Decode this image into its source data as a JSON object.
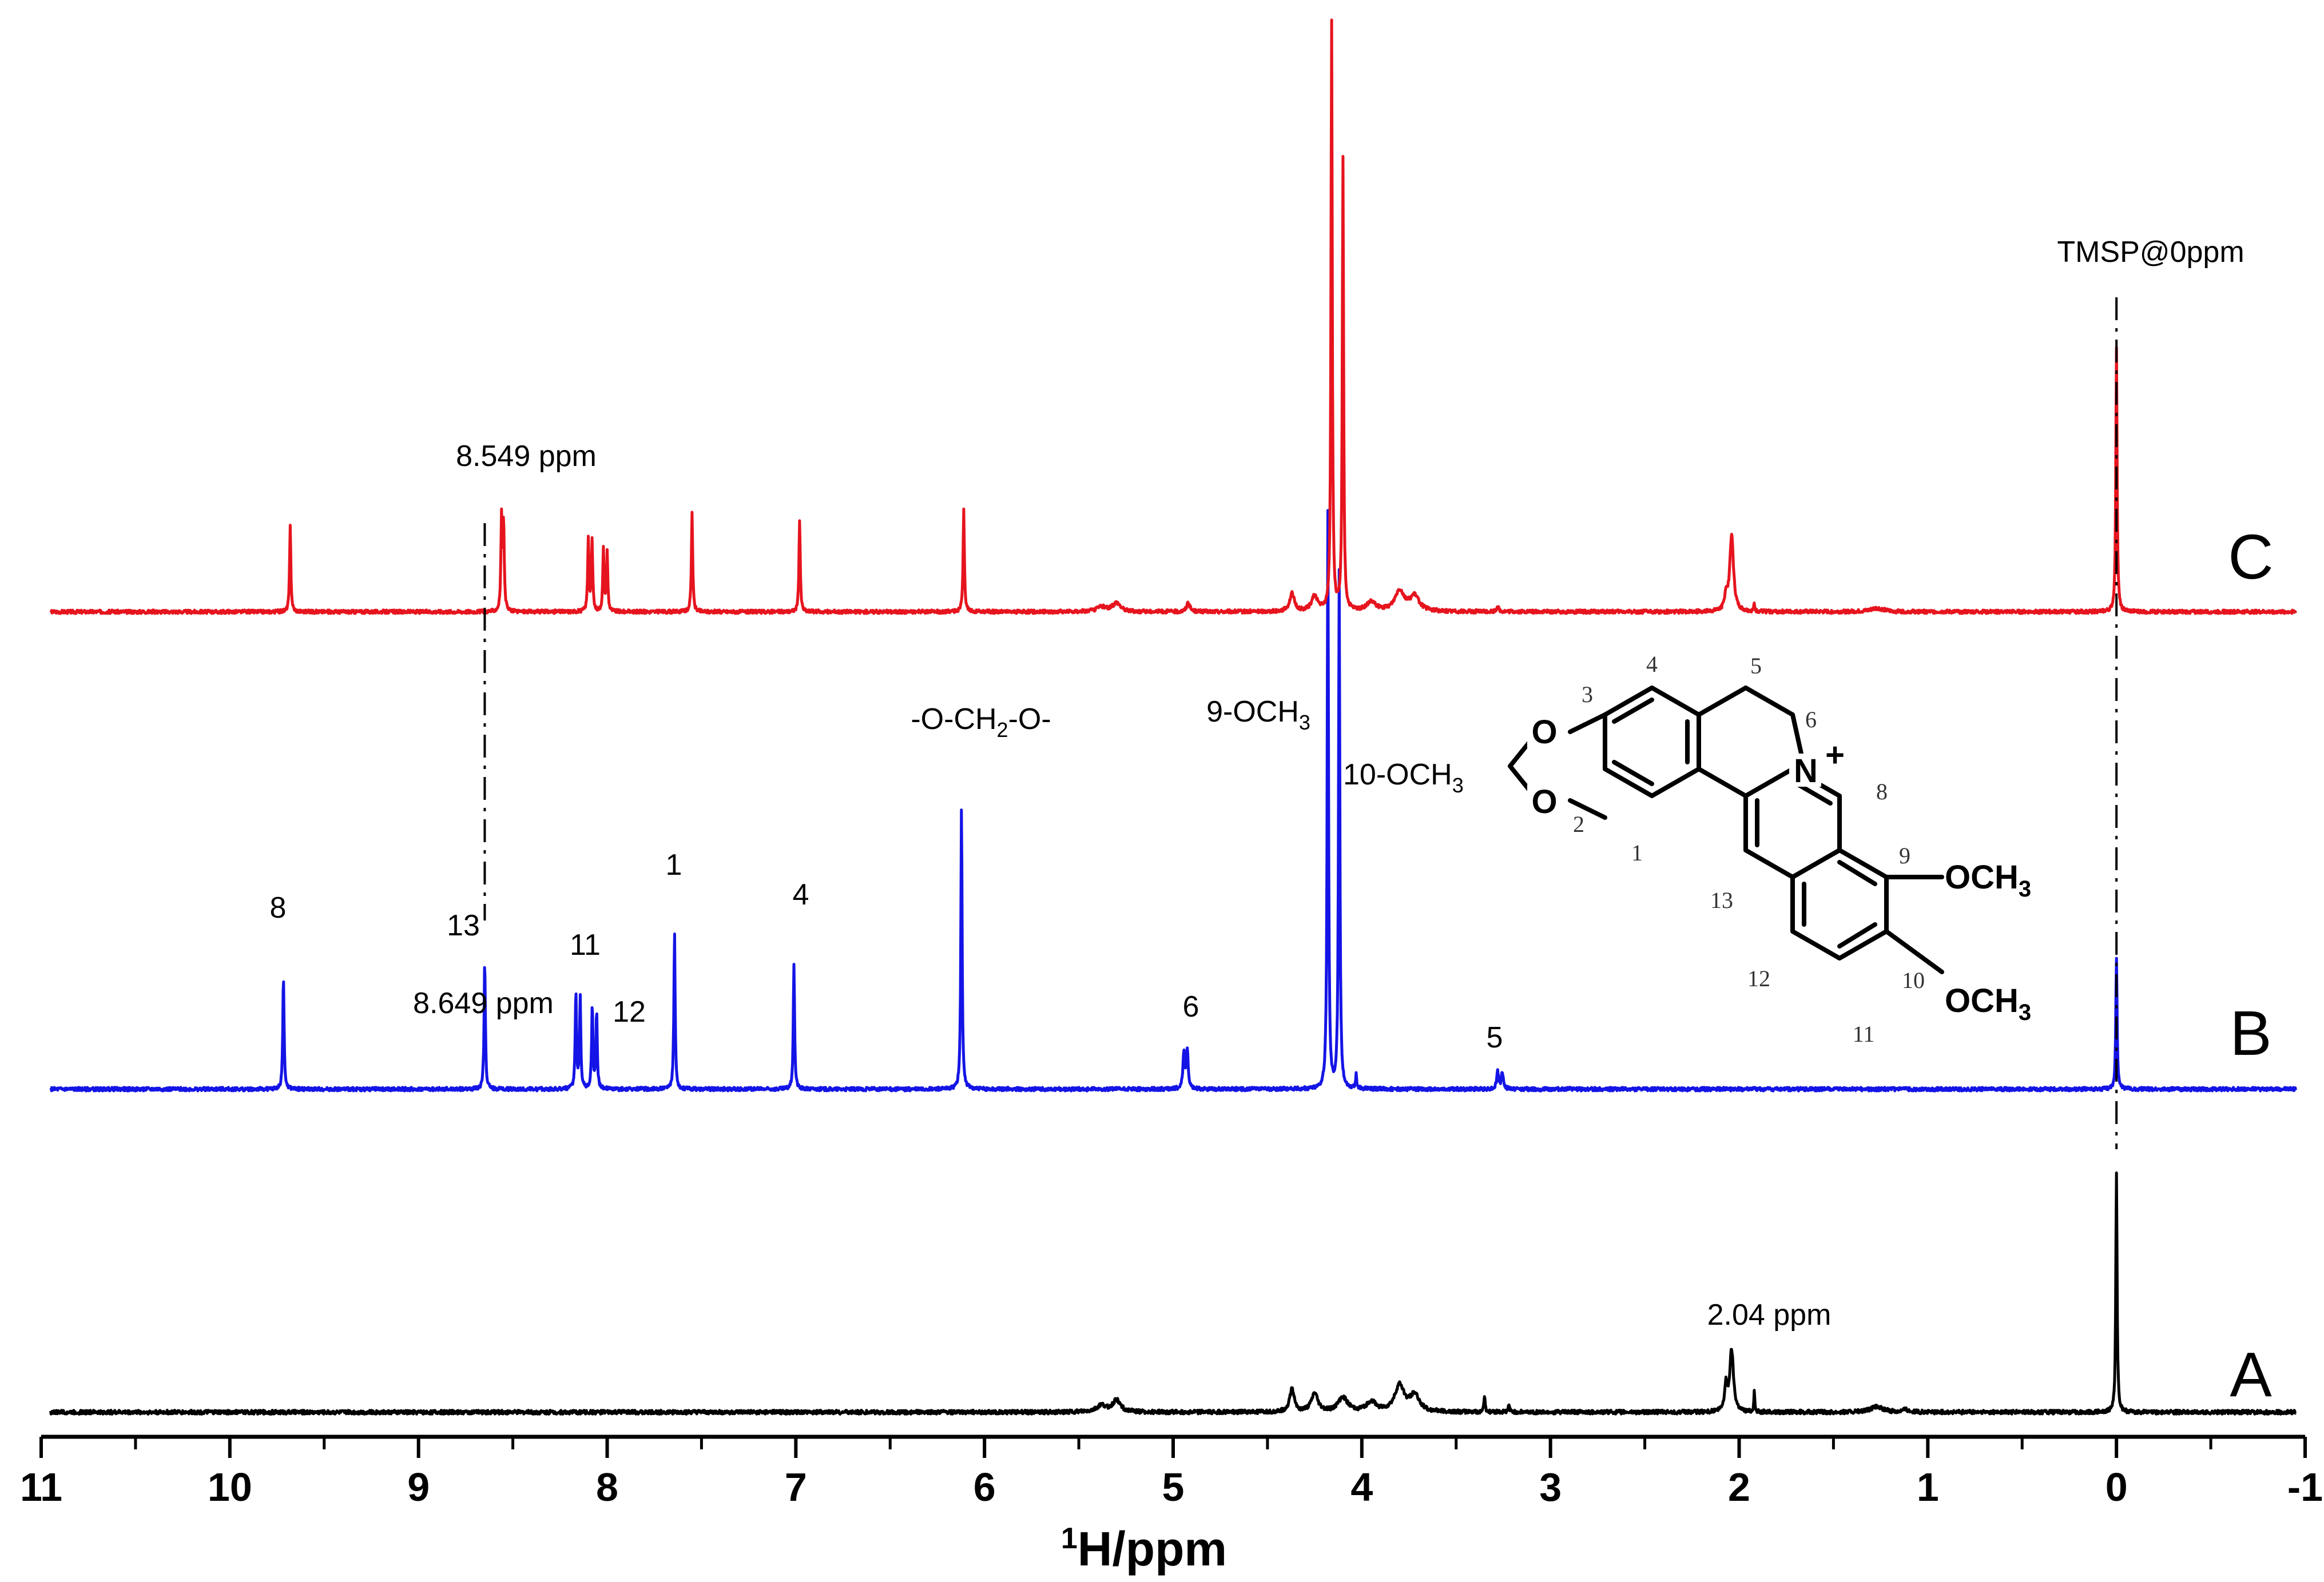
{
  "chart_data": {
    "type": "line",
    "title": "",
    "xlabel_sup": "1",
    "xlabel_main": "H/ppm",
    "ylabel": "",
    "xlim": [
      11,
      -1
    ],
    "x_reversed": true,
    "ticks": [
      "11",
      "10",
      "9",
      "8",
      "7",
      "6",
      "5",
      "4",
      "3",
      "2",
      "1",
      "0",
      "-1"
    ],
    "grid": false,
    "series": [
      {
        "name": "A",
        "color": "#000000",
        "peaks": [
          {
            "ppm": 5.38,
            "h": 0.01,
            "w": 0.03
          },
          {
            "ppm": 5.3,
            "h": 0.018,
            "w": 0.025
          },
          {
            "ppm": 4.37,
            "h": 0.035,
            "w": 0.015
          },
          {
            "ppm": 4.25,
            "h": 0.028,
            "w": 0.02
          },
          {
            "ppm": 4.1,
            "h": 0.022,
            "w": 0.03
          },
          {
            "ppm": 3.95,
            "h": 0.015,
            "w": 0.03
          },
          {
            "ppm": 3.8,
            "h": 0.04,
            "w": 0.03
          },
          {
            "ppm": 3.72,
            "h": 0.025,
            "w": 0.03
          },
          {
            "ppm": 3.35,
            "h": 0.025,
            "w": 0.004
          },
          {
            "ppm": 3.22,
            "h": 0.012,
            "w": 0.004
          },
          {
            "ppm": 2.07,
            "h": 0.04,
            "w": 0.008
          },
          {
            "ppm": 2.04,
            "h": 0.095,
            "w": 0.012
          },
          {
            "ppm": 1.92,
            "h": 0.032,
            "w": 0.003
          },
          {
            "ppm": 1.27,
            "h": 0.008,
            "w": 0.04
          },
          {
            "ppm": 1.12,
            "h": 0.004,
            "w": 0.02
          },
          {
            "ppm": 0.0,
            "h": 0.37,
            "w": 0.004
          }
        ]
      },
      {
        "name": "B",
        "color": "#1414e6",
        "peaks": [
          {
            "ppm": 9.716,
            "h": 0.19,
            "w": 0.004
          },
          {
            "ppm": 8.649,
            "h": 0.215,
            "w": 0.004
          },
          {
            "ppm": 8.166,
            "h": 0.16,
            "w": 0.004
          },
          {
            "ppm": 8.143,
            "h": 0.155,
            "w": 0.004
          },
          {
            "ppm": 8.079,
            "h": 0.14,
            "w": 0.004
          },
          {
            "ppm": 8.056,
            "h": 0.13,
            "w": 0.004
          },
          {
            "ppm": 7.643,
            "h": 0.26,
            "w": 0.004
          },
          {
            "ppm": 7.01,
            "h": 0.21,
            "w": 0.004
          },
          {
            "ppm": 6.122,
            "h": 0.47,
            "w": 0.004
          },
          {
            "ppm": 4.943,
            "h": 0.06,
            "w": 0.006
          },
          {
            "ppm": 4.925,
            "h": 0.06,
            "w": 0.006
          },
          {
            "ppm": 4.18,
            "h": 0.96,
            "w": 0.004
          },
          {
            "ppm": 4.12,
            "h": 0.86,
            "w": 0.004
          },
          {
            "ppm": 4.03,
            "h": 0.025,
            "w": 0.003
          },
          {
            "ppm": 3.28,
            "h": 0.03,
            "w": 0.006
          },
          {
            "ppm": 3.255,
            "h": 0.028,
            "w": 0.006
          },
          {
            "ppm": 0.0,
            "h": 0.22,
            "w": 0.004
          }
        ]
      },
      {
        "name": "C",
        "color": "#e6141e",
        "peaks": [
          {
            "ppm": 9.68,
            "h": 0.145,
            "w": 0.004
          },
          {
            "ppm": 8.56,
            "h": 0.155,
            "w": 0.004
          },
          {
            "ppm": 8.549,
            "h": 0.15,
            "w": 0.004
          },
          {
            "ppm": 8.1,
            "h": 0.125,
            "w": 0.004
          },
          {
            "ppm": 8.08,
            "h": 0.12,
            "w": 0.004
          },
          {
            "ppm": 8.02,
            "h": 0.105,
            "w": 0.004
          },
          {
            "ppm": 8.0,
            "h": 0.1,
            "w": 0.004
          },
          {
            "ppm": 7.55,
            "h": 0.17,
            "w": 0.004
          },
          {
            "ppm": 6.98,
            "h": 0.155,
            "w": 0.004
          },
          {
            "ppm": 6.11,
            "h": 0.175,
            "w": 0.004
          },
          {
            "ppm": 5.38,
            "h": 0.008,
            "w": 0.03
          },
          {
            "ppm": 5.3,
            "h": 0.015,
            "w": 0.025
          },
          {
            "ppm": 4.92,
            "h": 0.016,
            "w": 0.01
          },
          {
            "ppm": 4.37,
            "h": 0.03,
            "w": 0.015
          },
          {
            "ppm": 4.25,
            "h": 0.025,
            "w": 0.02
          },
          {
            "ppm": 4.16,
            "h": 1.0,
            "w": 0.004
          },
          {
            "ppm": 4.1,
            "h": 0.77,
            "w": 0.004
          },
          {
            "ppm": 3.95,
            "h": 0.015,
            "w": 0.03
          },
          {
            "ppm": 3.8,
            "h": 0.035,
            "w": 0.03
          },
          {
            "ppm": 3.72,
            "h": 0.025,
            "w": 0.03
          },
          {
            "ppm": 3.28,
            "h": 0.01,
            "w": 0.006
          },
          {
            "ppm": 2.07,
            "h": 0.025,
            "w": 0.008
          },
          {
            "ppm": 2.04,
            "h": 0.13,
            "w": 0.012
          },
          {
            "ppm": 1.92,
            "h": 0.012,
            "w": 0.003
          },
          {
            "ppm": 1.27,
            "h": 0.006,
            "w": 0.04
          },
          {
            "ppm": 0.0,
            "h": 0.45,
            "w": 0.004
          }
        ]
      }
    ],
    "reference_lines": [
      {
        "ppm": 8.649,
        "label": "8.649 ppm"
      },
      {
        "ppm": 0.0,
        "label": "TMSP@0ppm"
      }
    ],
    "annotations": [
      {
        "series": "C",
        "ppm": 8.549,
        "text": "8.549 ppm"
      },
      {
        "series": "B",
        "ppm": 9.716,
        "text": "8"
      },
      {
        "series": "B",
        "ppm": 8.649,
        "text": "13"
      },
      {
        "series": "B",
        "ppm": 8.166,
        "text": "11"
      },
      {
        "series": "B",
        "ppm": 8.056,
        "text": "12"
      },
      {
        "series": "B",
        "ppm": 7.643,
        "text": "1"
      },
      {
        "series": "B",
        "ppm": 7.01,
        "text": "4"
      },
      {
        "series": "B",
        "ppm": 6.122,
        "text": "-O-CH",
        "sub": "2",
        "suffix": "-O-"
      },
      {
        "series": "B",
        "ppm": 4.18,
        "text": "9-OCH",
        "sub": "3"
      },
      {
        "series": "B",
        "ppm": 4.12,
        "text": "10-OCH",
        "sub": "3"
      },
      {
        "series": "B",
        "ppm": 4.93,
        "text": "6"
      },
      {
        "series": "B",
        "ppm": 3.27,
        "text": "5"
      },
      {
        "series": "A",
        "ppm": 2.04,
        "text": "2.04 ppm"
      }
    ]
  },
  "structure": {
    "numbers": [
      "1",
      "2",
      "3",
      "4",
      "5",
      "6",
      "8",
      "9",
      "10",
      "11",
      "12",
      "13"
    ],
    "atoms": {
      "o1": "O",
      "o2": "O",
      "n": "N",
      "charge": "+",
      "och3_top": "OCH",
      "och3_bottom": "OCH",
      "sub": "3"
    }
  },
  "colors": {
    "A": "#000000",
    "B": "#1414e6",
    "C": "#e6141e",
    "axis": "#000000"
  }
}
